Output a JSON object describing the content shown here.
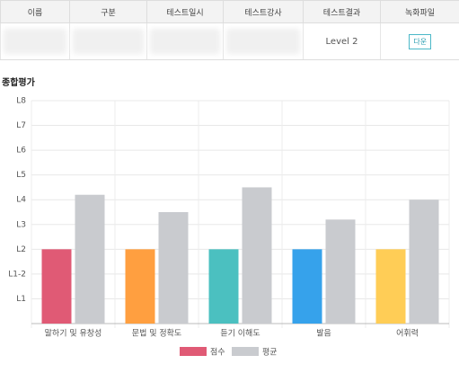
{
  "table": {
    "headers": [
      "이름",
      "구분",
      "테스트일시",
      "테스트강사",
      "테스트결과",
      "녹화파일"
    ],
    "result": "Level 2",
    "file_button": "다운"
  },
  "chart_data": {
    "type": "bar",
    "title": "종합평가",
    "categories": [
      "말하기 및 유창성",
      "문법 및 정확도",
      "듣기 이해도",
      "발음",
      "어휘력"
    ],
    "series": [
      {
        "name": "점수",
        "color": "#e05a75",
        "colors": [
          "#e05a75",
          "#ff9f40",
          "#4bc0c0",
          "#36a2eb",
          "#ffcd56"
        ],
        "values": [
          3,
          3,
          3,
          3,
          3
        ]
      },
      {
        "name": "평균",
        "color": "#c9cbcf",
        "values": [
          5.2,
          4.5,
          5.5,
          4.2,
          5
        ]
      }
    ],
    "ylim": [
      0,
      9
    ],
    "yticks": [
      {
        "value": 1,
        "label": "L1"
      },
      {
        "value": 2,
        "label": "L1-2"
      },
      {
        "value": 3,
        "label": "L2"
      },
      {
        "value": 4,
        "label": "L3"
      },
      {
        "value": 5,
        "label": "L4"
      },
      {
        "value": 6,
        "label": "L5"
      },
      {
        "value": 7,
        "label": "L6"
      },
      {
        "value": 8,
        "label": "L7"
      },
      {
        "value": 9,
        "label": "L8"
      }
    ],
    "grid": true
  }
}
